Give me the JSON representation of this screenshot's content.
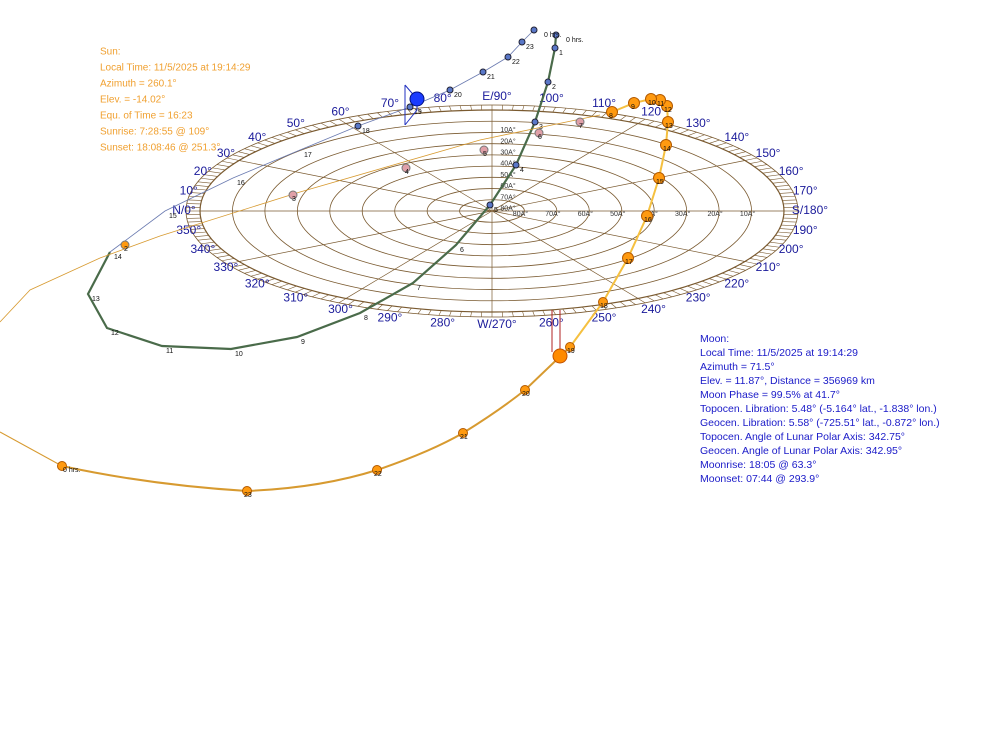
{
  "sun_info": [
    "Sun:",
    "Local Time: 11/5/2025 at 19:14:29",
    "Azimuth = 260.1°",
    "Elev. = -14.02°",
    "Equ. of Time = 16:23",
    "Sunrise: 7:28:55 @ 109°",
    "Sunset: 18:08:46 @ 251.3°"
  ],
  "moon_info": [
    "Moon:",
    "Local Time: 11/5/2025 at 19:14:29",
    "Azimuth = 71.5°",
    "Elev. = 11.87°, Distance = 356969 km",
    "Moon Phase = 99.5% at 41.7°",
    "Topocen. Libration: 5.48°  (-5.164° lat., -1.838° lon.)",
    "Geocen. Libration: 5.58°  (-725.51° lat., -0.872° lon.)",
    "Topocen. Angle of Lunar Polar Axis: 342.75°",
    "Geocen. Angle of Lunar Polar Axis: 342.95°",
    "Moonrise: 18:05 @ 63.3°",
    "Moonset: 07:44 @ 293.9°"
  ],
  "azimuth_labels": [
    "N/0°",
    "10°",
    "20°",
    "30°",
    "40°",
    "50°",
    "60°",
    "70°",
    "80°",
    "E/90°",
    "100°",
    "110°",
    "120°",
    "130°",
    "140°",
    "150°",
    "160°",
    "170°",
    "S/180°",
    "190°",
    "200°",
    "210°",
    "220°",
    "230°",
    "240°",
    "250°",
    "260°",
    "W/270°",
    "280°",
    "290°",
    "300°",
    "310°",
    "320°",
    "330°",
    "340°",
    "350°"
  ],
  "altitude_labels": [
    "10A°",
    "20A°",
    "30A°",
    "40A°",
    "50A°",
    "60A°",
    "70A°",
    "80A°"
  ],
  "moon_track_labels": [
    "0 hrs.",
    "1",
    "2",
    "3",
    "4",
    "5",
    "6",
    "7",
    "8",
    "9",
    "10",
    "11",
    "12",
    "13",
    "14",
    "15",
    "16",
    "17",
    "18",
    "19",
    "20",
    "21",
    "22",
    "23",
    "0 hrs."
  ],
  "sun_track_labels": [
    "0 hrs.",
    "23",
    "22",
    "21",
    "20",
    "19",
    "18",
    "17",
    "16",
    "15",
    "14",
    "13",
    "12",
    "11",
    "10",
    "9",
    "8"
  ],
  "ground_track_labels": [
    "2",
    "3",
    "4",
    "5",
    "6",
    "7"
  ]
}
